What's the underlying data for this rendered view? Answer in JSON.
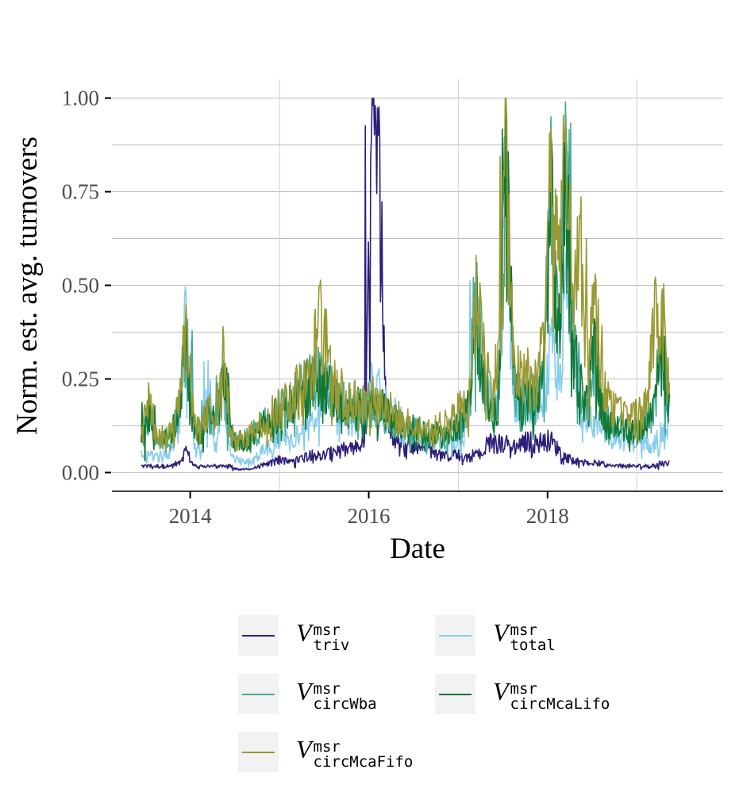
{
  "chart_data": {
    "type": "line",
    "title": "",
    "xlabel": "Date",
    "ylabel": "Norm. est. avg. turnovers",
    "xlim": [
      "2013-02-15",
      "2019-12-20"
    ],
    "ylim": [
      -0.05,
      1.05
    ],
    "x_ticks": [
      {
        "date": "2014-01-01",
        "label": "2014"
      },
      {
        "date": "2016-01-01",
        "label": "2016"
      },
      {
        "date": "2018-01-01",
        "label": "2018"
      }
    ],
    "y_ticks": [
      {
        "value": 0.0,
        "label": "0.00"
      },
      {
        "value": 0.25,
        "label": "0.25"
      },
      {
        "value": 0.5,
        "label": "0.50"
      },
      {
        "value": 0.75,
        "label": "0.75"
      },
      {
        "value": 1.0,
        "label": "1.00"
      }
    ],
    "grid": true,
    "legend_position": "bottom",
    "dates": [
      "2013-06",
      "2013-07",
      "2013-08",
      "2013-09",
      "2013-10",
      "2013-11",
      "2013-12",
      "2014-01",
      "2014-02",
      "2014-03",
      "2014-04",
      "2014-05",
      "2014-06",
      "2014-07",
      "2014-08",
      "2014-09",
      "2014-10",
      "2014-11",
      "2014-12",
      "2015-01",
      "2015-02",
      "2015-03",
      "2015-04",
      "2015-05",
      "2015-06",
      "2015-07",
      "2015-08",
      "2015-09",
      "2015-10",
      "2015-11",
      "2015-12",
      "2016-01",
      "2016-02",
      "2016-03",
      "2016-04",
      "2016-05",
      "2016-06",
      "2016-07",
      "2016-08",
      "2016-09",
      "2016-10",
      "2016-11",
      "2016-12",
      "2017-01",
      "2017-02",
      "2017-03",
      "2017-04",
      "2017-05",
      "2017-06",
      "2017-07",
      "2017-08",
      "2017-09",
      "2017-10",
      "2017-11",
      "2017-12",
      "2018-01",
      "2018-02",
      "2018-03",
      "2018-04",
      "2018-05",
      "2018-06",
      "2018-07",
      "2018-08",
      "2018-09",
      "2018-10",
      "2018-11",
      "2018-12",
      "2019-01",
      "2019-02",
      "2019-03",
      "2019-04",
      "2019-05"
    ],
    "series": [
      {
        "name": "V msr triv",
        "color": "#2d1e7a",
        "values": [
          0.02,
          0.02,
          0.02,
          0.02,
          0.02,
          0.03,
          0.07,
          0.02,
          0.02,
          0.02,
          0.02,
          0.02,
          0.02,
          0.01,
          0.01,
          0.01,
          0.02,
          0.03,
          0.04,
          0.04,
          0.03,
          0.04,
          0.05,
          0.06,
          0.05,
          0.06,
          0.06,
          0.07,
          0.07,
          0.08,
          0.09,
          1.0,
          0.89,
          0.16,
          0.12,
          0.1,
          0.09,
          0.08,
          0.07,
          0.07,
          0.06,
          0.05,
          0.06,
          0.05,
          0.05,
          0.06,
          0.05,
          0.1,
          0.09,
          0.09,
          0.08,
          0.09,
          0.1,
          0.09,
          0.1,
          0.1,
          0.07,
          0.05,
          0.04,
          0.03,
          0.03,
          0.03,
          0.03,
          0.02,
          0.02,
          0.02,
          0.02,
          0.02,
          0.02,
          0.02,
          0.03,
          0.03
        ]
      },
      {
        "name": "V msr total",
        "color": "#88ccee",
        "values": [
          0.06,
          0.05,
          0.05,
          0.05,
          0.07,
          0.15,
          0.48,
          0.08,
          0.06,
          0.3,
          0.08,
          0.24,
          0.05,
          0.04,
          0.03,
          0.04,
          0.06,
          0.08,
          0.1,
          0.11,
          0.1,
          0.12,
          0.14,
          0.16,
          0.22,
          0.3,
          0.2,
          0.18,
          0.16,
          0.17,
          0.18,
          0.28,
          0.25,
          0.2,
          0.18,
          0.14,
          0.13,
          0.12,
          0.1,
          0.1,
          0.09,
          0.08,
          0.1,
          0.1,
          0.15,
          0.55,
          0.3,
          0.2,
          0.22,
          0.9,
          0.22,
          0.25,
          0.2,
          0.24,
          0.2,
          0.38,
          0.25,
          0.55,
          0.4,
          0.22,
          0.18,
          0.15,
          0.14,
          0.12,
          0.12,
          0.1,
          0.1,
          0.1,
          0.09,
          0.1,
          0.12,
          0.14
        ]
      },
      {
        "name": "V msr circWba",
        "color": "#44aa99",
        "values": [
          0.08,
          0.2,
          0.1,
          0.1,
          0.12,
          0.2,
          0.42,
          0.15,
          0.12,
          0.2,
          0.14,
          0.3,
          0.12,
          0.1,
          0.1,
          0.12,
          0.14,
          0.16,
          0.18,
          0.2,
          0.22,
          0.24,
          0.26,
          0.28,
          0.32,
          0.28,
          0.24,
          0.22,
          0.2,
          0.2,
          0.2,
          0.22,
          0.2,
          0.18,
          0.16,
          0.15,
          0.14,
          0.13,
          0.12,
          0.12,
          0.12,
          0.12,
          0.14,
          0.16,
          0.2,
          0.56,
          0.3,
          0.2,
          0.22,
          1.0,
          0.3,
          0.2,
          0.25,
          0.22,
          0.3,
          0.95,
          0.4,
          0.99,
          0.4,
          0.28,
          0.2,
          0.4,
          0.18,
          0.16,
          0.15,
          0.14,
          0.14,
          0.14,
          0.16,
          0.2,
          0.4,
          0.2
        ]
      },
      {
        "name": "V msr circMcaLifo",
        "color": "#117733",
        "values": [
          0.08,
          0.2,
          0.1,
          0.1,
          0.12,
          0.2,
          0.4,
          0.15,
          0.12,
          0.2,
          0.14,
          0.28,
          0.12,
          0.1,
          0.1,
          0.12,
          0.14,
          0.16,
          0.18,
          0.2,
          0.22,
          0.24,
          0.26,
          0.28,
          0.3,
          0.27,
          0.23,
          0.21,
          0.2,
          0.2,
          0.2,
          0.22,
          0.2,
          0.18,
          0.16,
          0.15,
          0.14,
          0.13,
          0.12,
          0.12,
          0.12,
          0.12,
          0.14,
          0.16,
          0.2,
          0.5,
          0.28,
          0.2,
          0.22,
          0.98,
          0.28,
          0.2,
          0.24,
          0.22,
          0.3,
          0.9,
          0.38,
          0.92,
          0.38,
          0.28,
          0.2,
          0.38,
          0.18,
          0.16,
          0.15,
          0.14,
          0.14,
          0.14,
          0.16,
          0.2,
          0.38,
          0.2
        ]
      },
      {
        "name": "V msr circMcaFifo",
        "color": "#999933",
        "values": [
          0.1,
          0.24,
          0.12,
          0.11,
          0.13,
          0.22,
          0.45,
          0.16,
          0.13,
          0.2,
          0.15,
          0.39,
          0.12,
          0.1,
          0.1,
          0.13,
          0.15,
          0.17,
          0.2,
          0.22,
          0.24,
          0.26,
          0.28,
          0.31,
          0.5,
          0.35,
          0.3,
          0.25,
          0.24,
          0.22,
          0.22,
          0.24,
          0.22,
          0.2,
          0.18,
          0.16,
          0.15,
          0.14,
          0.13,
          0.13,
          0.14,
          0.15,
          0.18,
          0.2,
          0.25,
          0.58,
          0.4,
          0.25,
          0.35,
          1.0,
          0.35,
          0.28,
          0.3,
          0.28,
          0.4,
          0.92,
          0.66,
          0.93,
          0.5,
          0.68,
          0.3,
          0.53,
          0.25,
          0.22,
          0.2,
          0.18,
          0.18,
          0.18,
          0.22,
          0.51,
          0.49,
          0.24
        ]
      }
    ]
  },
  "legend": [
    {
      "sym": "V",
      "sup": "msr",
      "sub": "triv",
      "color": "#2d1e7a"
    },
    {
      "sym": "V",
      "sup": "msr",
      "sub": "total",
      "color": "#88ccee"
    },
    {
      "sym": "V",
      "sup": "msr",
      "sub": "circWba",
      "color": "#44aa99"
    },
    {
      "sym": "V",
      "sup": "msr",
      "sub": "circMcaLifo",
      "color": "#117733"
    },
    {
      "sym": "V",
      "sup": "msr",
      "sub": "circMcaFifo",
      "color": "#999933"
    }
  ]
}
